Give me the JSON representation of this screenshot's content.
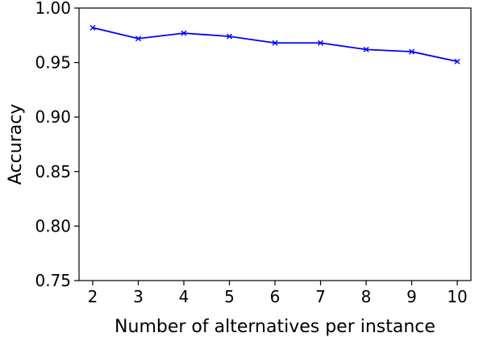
{
  "chart_data": {
    "type": "line",
    "title": "",
    "xlabel": "Number of alternatives per instance",
    "ylabel": "Accuracy",
    "x": [
      2,
      3,
      4,
      5,
      6,
      7,
      8,
      9,
      10
    ],
    "xticks": [
      "2",
      "3",
      "4",
      "5",
      "6",
      "7",
      "8",
      "9",
      "10"
    ],
    "xlim": [
      1.7,
      10.3
    ],
    "ylim": [
      0.75,
      1.0
    ],
    "yticks": [
      "0.75",
      "0.80",
      "0.85",
      "0.90",
      "0.95",
      "1.00"
    ],
    "ytick_values": [
      0.75,
      0.8,
      0.85,
      0.9,
      0.95,
      1.0
    ],
    "grid": false,
    "series": [
      {
        "color": "#0000ff",
        "marker": "x",
        "values": [
          0.982,
          0.972,
          0.977,
          0.974,
          0.968,
          0.968,
          0.962,
          0.96,
          0.951
        ]
      }
    ]
  }
}
